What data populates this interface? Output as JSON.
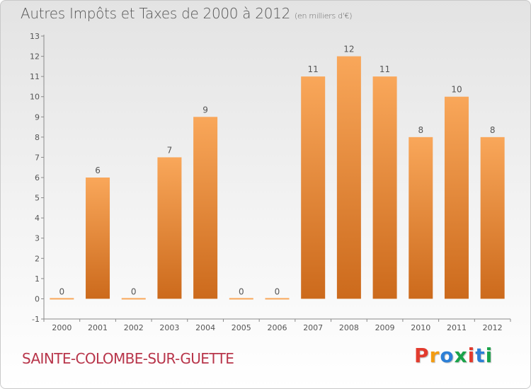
{
  "header": {
    "title": "Autres Impôts et Taxes de 2000 à 2012",
    "unit": "(en milliers d'€)"
  },
  "footer": {
    "town": "SAINTE-COLOMBE-SUR-GUETTE",
    "logo_letters": [
      "P",
      "r",
      "o",
      "x",
      "i",
      "t",
      "i"
    ],
    "logo_colors": [
      "#e23b2e",
      "#f39c12",
      "#2c7fd6",
      "#1aa34a",
      "#e23b2e",
      "#2c7fd6",
      "#1aa34a"
    ]
  },
  "chart_data": {
    "type": "bar",
    "title": "Autres Impôts et Taxes de 2000 à 2012",
    "categories": [
      "2000",
      "2001",
      "2002",
      "2003",
      "2004",
      "2005",
      "2006",
      "2007",
      "2008",
      "2009",
      "2010",
      "2011",
      "2012"
    ],
    "values": [
      0,
      6,
      0,
      7,
      9,
      0,
      0,
      11,
      12,
      11,
      8,
      10,
      8
    ],
    "data_labels": [
      "0",
      "6",
      "0",
      "7",
      "9",
      "0",
      "0",
      "11",
      "12",
      "11",
      "8",
      "10",
      "8"
    ],
    "yticks": [
      "-1",
      "0",
      "1",
      "2",
      "3",
      "4",
      "5",
      "6",
      "7",
      "8",
      "9",
      "10",
      "11",
      "12",
      "13"
    ],
    "ylim": [
      -1,
      13
    ],
    "grid": false,
    "colors": {
      "bar_light": "#f9a75a",
      "bar_dark": "#cc6a1c",
      "axis": "#8a8a8a",
      "text": "#555555"
    }
  }
}
